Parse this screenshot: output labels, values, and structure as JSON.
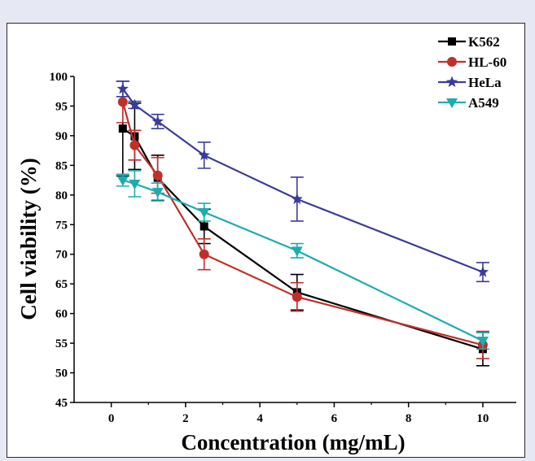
{
  "chart_data": {
    "type": "line",
    "title": "",
    "xlabel": "Concentration (mg/mL)",
    "ylabel": "Cell viability (%)",
    "xlim": [
      -1,
      10.9
    ],
    "ylim": [
      45,
      100
    ],
    "xticks": [
      "0",
      "2",
      "4",
      "6",
      "8",
      "10"
    ],
    "xtick_values": [
      0,
      2,
      4,
      6,
      8,
      10
    ],
    "yticks": [
      "45",
      "50",
      "55",
      "60",
      "65",
      "70",
      "75",
      "80",
      "85",
      "90",
      "95",
      "100"
    ],
    "ytick_values": [
      45,
      50,
      55,
      60,
      65,
      70,
      75,
      80,
      85,
      90,
      95,
      100
    ],
    "legend_position": "top-right",
    "series": [
      {
        "name": "K562",
        "color": "#000000",
        "marker": "square",
        "x": [
          0.31,
          0.63,
          1.25,
          2.5,
          5,
          10
        ],
        "y": [
          91.2,
          89.9,
          82.9,
          74.7,
          63.6,
          54.0
        ],
        "err": [
          8.0,
          5.6,
          3.8,
          2.9,
          3.0,
          2.8
        ]
      },
      {
        "name": "HL-60",
        "color": "#c0302b",
        "marker": "circle",
        "x": [
          0.31,
          0.63,
          1.25,
          2.5,
          5,
          10
        ],
        "y": [
          95.7,
          88.4,
          83.3,
          70.0,
          62.8,
          54.7
        ],
        "err": [
          3.5,
          2.5,
          3.0,
          2.6,
          2.4,
          2.3
        ]
      },
      {
        "name": "HeLa",
        "color": "#3a3c9a",
        "marker": "star",
        "x": [
          0.31,
          0.63,
          1.25,
          2.5,
          5,
          10
        ],
        "y": [
          97.9,
          95.2,
          92.4,
          86.7,
          79.3,
          67.0
        ],
        "err": [
          1.3,
          0.6,
          1.2,
          2.2,
          3.7,
          1.6
        ]
      },
      {
        "name": "A549",
        "color": "#1eabb0",
        "marker": "triangle-down",
        "x": [
          0.31,
          0.63,
          1.25,
          2.5,
          5,
          10
        ],
        "y": [
          82.5,
          81.9,
          80.5,
          77.1,
          70.6,
          55.4
        ],
        "err": [
          1.0,
          2.2,
          1.5,
          1.5,
          1.2,
          1.4
        ]
      }
    ]
  }
}
